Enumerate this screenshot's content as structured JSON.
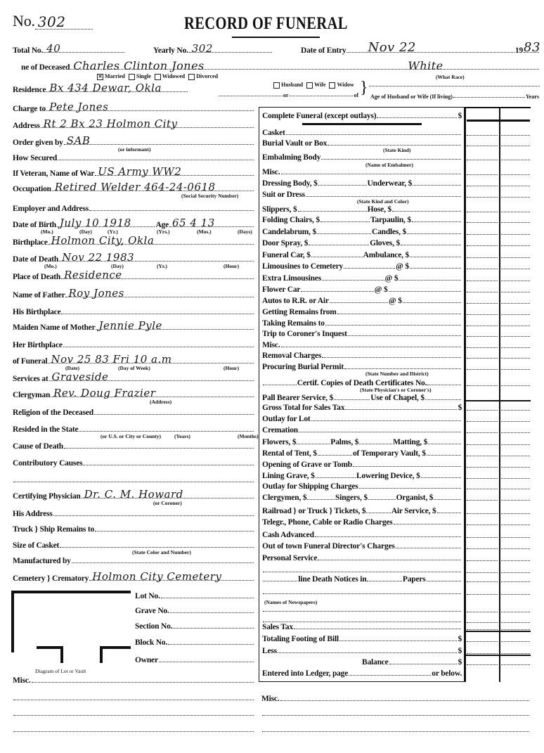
{
  "header": {
    "no_label": "No.",
    "no_value": "302",
    "title": "RECORD OF FUNERAL",
    "total_label": "Total No.",
    "total_value": "40",
    "yearly_label": "Yearly No.",
    "yearly_value": "302",
    "entry_label": "Date of Entry",
    "entry_value": "Nov 22",
    "year_prefix": "19",
    "year_value": "83"
  },
  "deceased": {
    "name_label": "ne of Deceased",
    "name_value": "Charles Clinton Jones",
    "race_value": "White",
    "race_caption": "(What Race)",
    "marital": [
      {
        "label": "Married",
        "checked": true
      },
      {
        "label": "Single",
        "checked": false
      },
      {
        "label": "Widowed",
        "checked": false
      },
      {
        "label": "Divorced",
        "checked": false
      }
    ],
    "spouse_options": [
      "Husband",
      "Wife",
      "Widow"
    ],
    "or_label": "or",
    "of_label": "of",
    "age_spouse_label": "Age of Husband or Wife (If living)",
    "years_label": "Years"
  },
  "left": {
    "fields": [
      {
        "label": "Residence",
        "value": "Bx 434 Dewar, Okla"
      },
      {
        "label": "Charge to",
        "value": "Pete Jones"
      },
      {
        "label": "Address",
        "value": "Rt 2 Bx 23 Holmon City"
      },
      {
        "label": "Order given by",
        "value": "SAB",
        "captions": [
          "(or informant)"
        ]
      },
      {
        "label": "How Secured",
        "value": ""
      },
      {
        "label": "If Veteran, Name of War",
        "value": "US Army WW2"
      },
      {
        "label": "Occupation",
        "value": "Retired Welder 464-24-0618",
        "captions": [
          "(Social Security Number)"
        ]
      },
      {
        "label": "Employer and Address",
        "value": ""
      },
      {
        "label": "Date of Birth",
        "value": "July 10 1918",
        "age_label": "Age",
        "age_value": "65 4 13",
        "captions": [
          "(Mo.)",
          "(Day)",
          "(Yr.)",
          "(Yrs.)",
          "(Mos.)",
          "(Days)"
        ]
      },
      {
        "label": "Birthplace",
        "value": "Holmon City, Okla"
      },
      {
        "label": "Date of Death",
        "value": "Nov 22 1983",
        "captions": [
          "(Mo.)",
          "(Day)",
          "(Yr.)",
          "(Hour)"
        ]
      },
      {
        "label": "Place of Death",
        "value": "Residence"
      },
      {
        "label": "Name of Father",
        "value": "Roy Jones"
      },
      {
        "label": "His Birthplace",
        "value": ""
      },
      {
        "label": "Maiden Name of Mother",
        "value": "Jennie Pyle"
      },
      {
        "label": "Her Birthplace",
        "value": ""
      },
      {
        "label": "of Funeral",
        "value": "Nov 25 83   Fri            10 a.m",
        "captions": [
          "(Date)",
          "(Day of Week)",
          "(Hour)"
        ]
      },
      {
        "label": "Services at",
        "value": "Graveside"
      },
      {
        "label": "Clergyman",
        "value": "Rev. Doug Frazier",
        "captions": [
          "(Address)"
        ]
      },
      {
        "label": "Religion of the Deceased",
        "value": ""
      },
      {
        "label": "Resided in the State",
        "value": "",
        "captions": [
          "(or U.S. or City or County)",
          "(Years)",
          "(Months)"
        ]
      },
      {
        "label": "Cause of Death",
        "value": ""
      },
      {
        "label": "Contributory Causes",
        "value": ""
      },
      {
        "label": "",
        "value": ""
      },
      {
        "label": "Certifying Physician",
        "value": "Dr. C. M. Howard",
        "captions": [
          "(or Coroner)"
        ]
      },
      {
        "label": "His Address",
        "value": ""
      },
      {
        "label": "Truck } Ship    Remains to",
        "value": ""
      },
      {
        "label": "Size of Casket",
        "value": "",
        "captions": [
          "(State Color and Number)"
        ]
      },
      {
        "label": "Manufactured by",
        "value": ""
      },
      {
        "label": "Cemetery } Crematory",
        "value": "Holmon City Cemetery"
      }
    ],
    "lot_fields": [
      "Lot No.",
      "Grave No.",
      "Section No.",
      "Block No.",
      "Owner"
    ],
    "diagram_caption": "Diagram of Lot or Vault",
    "misc_label": "Misc."
  },
  "charges": {
    "rows": [
      {
        "parts": [
          "Complete Funeral (except outlays)"
        ],
        "end": "$"
      },
      {
        "parts": [
          "Casket"
        ]
      },
      {
        "parts": [
          "Burial Vault or Box"
        ]
      },
      {
        "parts": [
          "Embalming Body"
        ]
      },
      {
        "parts": [
          "Misc."
        ]
      },
      {
        "parts": [
          "Dressing Body, $",
          "Underwear, $"
        ]
      },
      {
        "parts": [
          "Suit or Dress"
        ]
      },
      {
        "parts": [
          "Slippers, $",
          "Hose, $"
        ]
      },
      {
        "parts": [
          "Folding Chairs, $",
          "Tarpaulin, $"
        ]
      },
      {
        "parts": [
          "Candelabrum, $",
          "Candles, $"
        ]
      },
      {
        "parts": [
          "Door Spray, $",
          "Gloves, $"
        ]
      },
      {
        "parts": [
          "Funeral Car, $",
          "Ambulance, $"
        ]
      },
      {
        "parts": [
          "Limousines to Cemetery",
          "@ $"
        ]
      },
      {
        "parts": [
          "Extra Limousines",
          "@ $"
        ]
      },
      {
        "parts": [
          "Flower Car",
          "@ $"
        ]
      },
      {
        "parts": [
          "Autos to R.R. or Air",
          "@ $"
        ]
      },
      {
        "parts": [
          "Getting Remains from"
        ]
      },
      {
        "parts": [
          "Taking Remains to"
        ]
      },
      {
        "parts": [
          "Trip to Coroner's Inquest"
        ]
      },
      {
        "parts": [
          "Misc."
        ]
      },
      {
        "parts": [
          "Removal Charges"
        ]
      },
      {
        "parts": [
          "Procuring Burial Permit"
        ]
      },
      {
        "parts": [
          "",
          "Certif. Copies of Death Certificates No."
        ]
      },
      {
        "parts": [
          "Pall Bearer Service, $",
          "Use of Chapel, $"
        ]
      },
      {
        "parts": [
          "Gross Total for Sales Tax"
        ],
        "end": "$"
      },
      {
        "parts": [
          "Outlay for Lot"
        ]
      },
      {
        "parts": [
          "Cremation"
        ]
      },
      {
        "parts": [
          "Flowers, $",
          "Palms, $",
          "Matting, $"
        ]
      },
      {
        "parts": [
          "Rental of Tent, $",
          "of Temporary Vault, $"
        ]
      },
      {
        "parts": [
          "Opening of Grave or Tomb"
        ]
      },
      {
        "parts": [
          "Lining Grave, $",
          "Lowering Device, $"
        ]
      },
      {
        "parts": [
          "Outlay for Shipping Charges"
        ]
      },
      {
        "parts": [
          "Clergymen, $",
          "Singers, $",
          "Organist, $"
        ]
      },
      {
        "parts": [
          "Railroad } or Truck }   Tickets, $",
          "Air Service, $"
        ]
      },
      {
        "parts": [
          "Telegr., Phone, Cable or Radio Charges"
        ]
      },
      {
        "parts": [
          "Cash Advanced"
        ]
      },
      {
        "parts": [
          "Out of town Funeral Director's Charges"
        ]
      },
      {
        "parts": [
          "Personal Service"
        ]
      },
      {
        "parts": [
          ""
        ]
      },
      {
        "parts": [
          "",
          "line Death Notices in",
          "Papers"
        ]
      },
      {
        "parts": [
          ""
        ]
      },
      {
        "parts": [
          ""
        ]
      },
      {
        "parts": [
          ""
        ]
      },
      {
        "parts": [
          "Sales Tax"
        ]
      },
      {
        "parts": [
          "Totaling Footing of Bill"
        ],
        "end": "$"
      },
      {
        "parts": [
          "Less"
        ],
        "end": "$"
      },
      {
        "parts": [
          "Balance"
        ],
        "end": "$"
      },
      {
        "parts": [
          "Entered into Ledger, page",
          "or below."
        ],
        "noTrail": true
      }
    ],
    "captions": [
      "(State Kind)",
      "(Name of Embalmer)",
      "(State Kind and Color)",
      "(State Number and District)",
      "(State Physician's or Coroner's)",
      "(Names of Newspapers)"
    ],
    "misc_label": "Misc."
  }
}
